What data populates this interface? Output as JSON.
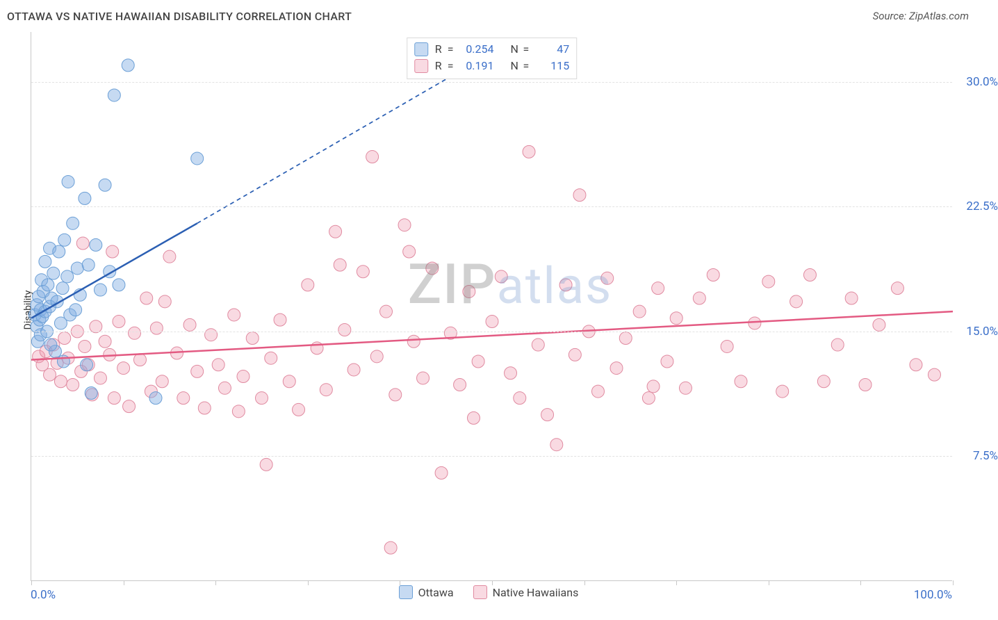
{
  "header": {
    "title": "OTTAWA VS NATIVE HAWAIIAN DISABILITY CORRELATION CHART",
    "source": "Source: ZipAtlas.com"
  },
  "watermark": {
    "z": "ZIP",
    "rest": "atlas"
  },
  "chart": {
    "type": "scatter",
    "ylabel": "Disability",
    "background_color": "#ffffff",
    "grid_color": "#e2e2e2",
    "axis_color": "#c8c8c8",
    "tick_label_color": "#3b6fc9",
    "xlim": [
      0,
      100
    ],
    "x_ticks_major": [
      0,
      20,
      40,
      60,
      80,
      100
    ],
    "x_ticks_minor": [
      10,
      30,
      50,
      70,
      90
    ],
    "x_axis_labels": {
      "left": "0.0%",
      "right": "100.0%"
    },
    "ylim": [
      0,
      33
    ],
    "y_gridlines": [
      {
        "value": 7.5,
        "label": "7.5%"
      },
      {
        "value": 15.0,
        "label": "15.0%"
      },
      {
        "value": 22.5,
        "label": "22.5%"
      },
      {
        "value": 30.0,
        "label": "30.0%"
      }
    ],
    "series": {
      "ottawa": {
        "label": "Ottawa",
        "marker_fill": "rgba(128,172,226,0.45)",
        "marker_stroke": "#6b9fd6",
        "marker_radius": 9,
        "trend": {
          "color": "#2b5fb3",
          "width": 2.5,
          "solid": {
            "x1": 0,
            "y1": 15.8,
            "x2": 18,
            "y2": 21.5
          },
          "dashed": {
            "x1": 18,
            "y1": 21.5,
            "x2": 47,
            "y2": 30.8
          }
        },
        "stats": {
          "R": "0.254",
          "N": "47"
        },
        "points": [
          [
            0.4,
            16.0
          ],
          [
            0.6,
            15.3
          ],
          [
            0.6,
            16.6
          ],
          [
            0.7,
            14.4
          ],
          [
            0.8,
            17.1
          ],
          [
            0.9,
            15.7
          ],
          [
            1.0,
            16.3
          ],
          [
            1.0,
            14.8
          ],
          [
            1.1,
            18.1
          ],
          [
            1.2,
            15.9
          ],
          [
            1.3,
            17.4
          ],
          [
            1.5,
            16.2
          ],
          [
            1.5,
            19.2
          ],
          [
            1.7,
            15.0
          ],
          [
            1.8,
            17.8
          ],
          [
            2.0,
            16.5
          ],
          [
            2.0,
            20.0
          ],
          [
            2.2,
            17.0
          ],
          [
            2.4,
            18.5
          ],
          [
            2.6,
            13.8
          ],
          [
            2.8,
            16.8
          ],
          [
            3.0,
            19.8
          ],
          [
            3.2,
            15.5
          ],
          [
            3.4,
            17.6
          ],
          [
            3.6,
            20.5
          ],
          [
            3.9,
            18.3
          ],
          [
            4.2,
            16.0
          ],
          [
            4.5,
            21.5
          ],
          [
            5.0,
            18.8
          ],
          [
            5.3,
            17.2
          ],
          [
            5.8,
            23.0
          ],
          [
            6.2,
            19.0
          ],
          [
            6.5,
            11.3
          ],
          [
            7.0,
            20.2
          ],
          [
            7.5,
            17.5
          ],
          [
            8.0,
            23.8
          ],
          [
            8.5,
            18.6
          ],
          [
            9.5,
            17.8
          ],
          [
            9.0,
            29.2
          ],
          [
            10.5,
            31.0
          ],
          [
            3.5,
            13.2
          ],
          [
            4.0,
            24.0
          ],
          [
            6.0,
            13.0
          ],
          [
            13.5,
            11.0
          ],
          [
            18.0,
            25.4
          ],
          [
            4.8,
            16.3
          ],
          [
            2.1,
            14.2
          ]
        ]
      },
      "hawaiians": {
        "label": "Native Hawaiians",
        "marker_fill": "rgba(235,140,165,0.32)",
        "marker_stroke": "#e08aa0",
        "marker_radius": 9,
        "trend": {
          "color": "#e35a82",
          "width": 2.5,
          "solid": {
            "x1": 0,
            "y1": 13.3,
            "x2": 100,
            "y2": 16.2
          }
        },
        "stats": {
          "R": "0.191",
          "N": "115"
        },
        "points": [
          [
            0.8,
            13.5
          ],
          [
            1.2,
            13.0
          ],
          [
            1.6,
            13.8
          ],
          [
            2.0,
            12.4
          ],
          [
            2.4,
            14.2
          ],
          [
            2.8,
            13.1
          ],
          [
            3.2,
            12.0
          ],
          [
            3.6,
            14.6
          ],
          [
            4.0,
            13.4
          ],
          [
            4.5,
            11.8
          ],
          [
            5.0,
            15.0
          ],
          [
            5.4,
            12.6
          ],
          [
            5.8,
            14.1
          ],
          [
            6.2,
            13.0
          ],
          [
            6.6,
            11.2
          ],
          [
            7.0,
            15.3
          ],
          [
            7.5,
            12.2
          ],
          [
            8.0,
            14.4
          ],
          [
            8.5,
            13.6
          ],
          [
            9.0,
            11.0
          ],
          [
            9.5,
            15.6
          ],
          [
            10.0,
            12.8
          ],
          [
            10.6,
            10.5
          ],
          [
            11.2,
            14.9
          ],
          [
            11.8,
            13.3
          ],
          [
            12.5,
            17.0
          ],
          [
            13.0,
            11.4
          ],
          [
            13.6,
            15.2
          ],
          [
            14.2,
            12.0
          ],
          [
            15.0,
            19.5
          ],
          [
            15.8,
            13.7
          ],
          [
            16.5,
            11.0
          ],
          [
            17.2,
            15.4
          ],
          [
            18.0,
            12.6
          ],
          [
            18.8,
            10.4
          ],
          [
            19.5,
            14.8
          ],
          [
            20.3,
            13.0
          ],
          [
            21.0,
            11.6
          ],
          [
            22.0,
            16.0
          ],
          [
            23.0,
            12.3
          ],
          [
            24.0,
            14.6
          ],
          [
            25.0,
            11.0
          ],
          [
            25.5,
            7.0
          ],
          [
            26.0,
            13.4
          ],
          [
            27.0,
            15.7
          ],
          [
            28.0,
            12.0
          ],
          [
            29.0,
            10.3
          ],
          [
            30.0,
            17.8
          ],
          [
            31.0,
            14.0
          ],
          [
            32.0,
            11.5
          ],
          [
            33.0,
            21.0
          ],
          [
            33.5,
            19.0
          ],
          [
            34.0,
            15.1
          ],
          [
            35.0,
            12.7
          ],
          [
            36.0,
            18.6
          ],
          [
            37.0,
            25.5
          ],
          [
            37.5,
            13.5
          ],
          [
            38.5,
            16.2
          ],
          [
            39.5,
            11.2
          ],
          [
            40.5,
            21.4
          ],
          [
            39.0,
            2.0
          ],
          [
            41.5,
            14.4
          ],
          [
            42.5,
            12.2
          ],
          [
            43.5,
            18.8
          ],
          [
            44.5,
            6.5
          ],
          [
            45.5,
            14.9
          ],
          [
            46.5,
            11.8
          ],
          [
            47.5,
            17.4
          ],
          [
            48.5,
            13.2
          ],
          [
            50.0,
            15.6
          ],
          [
            51.0,
            18.3
          ],
          [
            52.0,
            12.5
          ],
          [
            53.0,
            11.0
          ],
          [
            54.0,
            25.8
          ],
          [
            55.0,
            14.2
          ],
          [
            56.0,
            10.0
          ],
          [
            57.0,
            8.2
          ],
          [
            58.0,
            17.8
          ],
          [
            59.0,
            13.6
          ],
          [
            59.5,
            23.2
          ],
          [
            60.5,
            15.0
          ],
          [
            61.5,
            11.4
          ],
          [
            62.5,
            18.2
          ],
          [
            63.5,
            12.8
          ],
          [
            64.5,
            14.6
          ],
          [
            66.0,
            16.2
          ],
          [
            67.0,
            11.0
          ],
          [
            68.0,
            17.6
          ],
          [
            69.0,
            13.2
          ],
          [
            70.0,
            15.8
          ],
          [
            71.0,
            11.6
          ],
          [
            72.5,
            17.0
          ],
          [
            74.0,
            18.4
          ],
          [
            75.5,
            14.1
          ],
          [
            77.0,
            12.0
          ],
          [
            78.5,
            15.5
          ],
          [
            80.0,
            18.0
          ],
          [
            81.5,
            11.4
          ],
          [
            83.0,
            16.8
          ],
          [
            84.5,
            18.4
          ],
          [
            86.0,
            12.0
          ],
          [
            87.5,
            14.2
          ],
          [
            89.0,
            17.0
          ],
          [
            90.5,
            11.8
          ],
          [
            92.0,
            15.4
          ],
          [
            94.0,
            17.6
          ],
          [
            96.0,
            13.0
          ],
          [
            98.0,
            12.4
          ],
          [
            67.5,
            11.7
          ],
          [
            5.6,
            20.3
          ],
          [
            8.8,
            19.8
          ],
          [
            14.5,
            16.8
          ],
          [
            22.5,
            10.2
          ],
          [
            48.0,
            9.8
          ],
          [
            41.0,
            19.8
          ]
        ]
      }
    },
    "legend_top": {
      "border_color": "#d9d9d9",
      "label_color": "#444444",
      "value_color": "#3b6fc9"
    }
  }
}
